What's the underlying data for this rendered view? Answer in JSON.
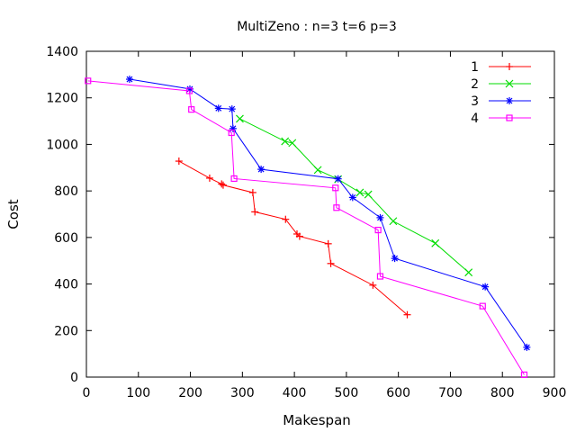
{
  "chart_data": {
    "type": "line",
    "title": "MultiZeno : n=3 t=6 p=3",
    "xlabel": "Makespan",
    "ylabel": "Cost",
    "xlim": [
      0,
      900
    ],
    "ylim": [
      0,
      1400
    ],
    "xticks": [
      0,
      100,
      200,
      300,
      400,
      500,
      600,
      700,
      800,
      900
    ],
    "yticks": [
      0,
      200,
      400,
      600,
      800,
      1000,
      1200,
      1400
    ],
    "grid": false,
    "legend_position": "top-right",
    "series": [
      {
        "name": "1",
        "color": "#ff0000",
        "marker": "plus",
        "points": [
          [
            178,
            928
          ],
          [
            237,
            855
          ],
          [
            260,
            830
          ],
          [
            263,
            825
          ],
          [
            320,
            793
          ],
          [
            324,
            710
          ],
          [
            383,
            678
          ],
          [
            405,
            615
          ],
          [
            410,
            605
          ],
          [
            465,
            573
          ],
          [
            470,
            488
          ],
          [
            551,
            395
          ],
          [
            617,
            268
          ]
        ]
      },
      {
        "name": "2",
        "color": "#00dd00",
        "marker": "cross",
        "points": [
          [
            295,
            1110
          ],
          [
            382,
            1013
          ],
          [
            396,
            1006
          ],
          [
            445,
            890
          ],
          [
            484,
            850
          ],
          [
            526,
            793
          ],
          [
            542,
            785
          ],
          [
            590,
            670
          ],
          [
            671,
            575
          ],
          [
            735,
            450
          ]
        ]
      },
      {
        "name": "3",
        "color": "#0000ff",
        "marker": "star",
        "points": [
          [
            83,
            1280
          ],
          [
            199,
            1238
          ],
          [
            254,
            1155
          ],
          [
            280,
            1152
          ],
          [
            282,
            1068
          ],
          [
            336,
            893
          ],
          [
            484,
            852
          ],
          [
            512,
            772
          ],
          [
            565,
            685
          ],
          [
            593,
            510
          ],
          [
            767,
            388
          ],
          [
            847,
            128
          ]
        ]
      },
      {
        "name": "4",
        "color": "#ff00ff",
        "marker": "square",
        "points": [
          [
            3,
            1273
          ],
          [
            198,
            1230
          ],
          [
            202,
            1150
          ],
          [
            279,
            1050
          ],
          [
            284,
            853
          ],
          [
            479,
            813
          ],
          [
            481,
            728
          ],
          [
            561,
            632
          ],
          [
            565,
            433
          ],
          [
            762,
            305
          ],
          [
            842,
            10
          ]
        ]
      }
    ]
  }
}
